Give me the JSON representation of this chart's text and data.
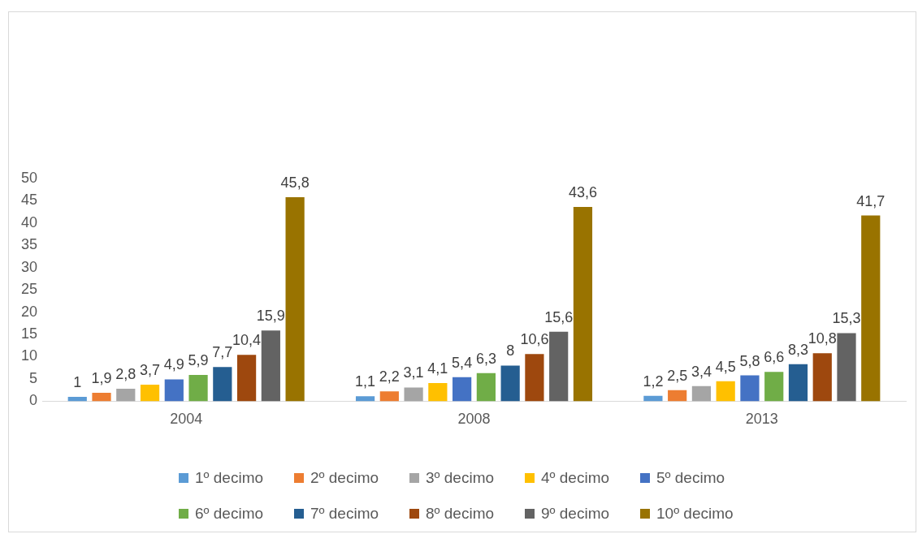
{
  "chart_data": {
    "type": "bar",
    "categories": [
      "2004",
      "2008",
      "2013"
    ],
    "series": [
      {
        "name": "1º decimo",
        "color": "#5b9bd5",
        "values": [
          1,
          1.1,
          1.2
        ],
        "value_labels": [
          "1",
          "1,1",
          "1,2"
        ]
      },
      {
        "name": "2º decimo",
        "color": "#ed7d31",
        "values": [
          1.9,
          2.2,
          2.5
        ],
        "value_labels": [
          "1,9",
          "2,2",
          "2,5"
        ]
      },
      {
        "name": "3º decimo",
        "color": "#a5a5a5",
        "values": [
          2.8,
          3.1,
          3.4
        ],
        "value_labels": [
          "2,8",
          "3,1",
          "3,4"
        ]
      },
      {
        "name": "4º decimo",
        "color": "#ffc000",
        "values": [
          3.7,
          4.1,
          4.5
        ],
        "value_labels": [
          "3,7",
          "4,1",
          "4,5"
        ]
      },
      {
        "name": "5º decimo",
        "color": "#4472c4",
        "values": [
          4.9,
          5.4,
          5.8
        ],
        "value_labels": [
          "4,9",
          "5,4",
          "5,8"
        ]
      },
      {
        "name": "6º decimo",
        "color": "#70ad47",
        "values": [
          5.9,
          6.3,
          6.6
        ],
        "value_labels": [
          "5,9",
          "6,3",
          "6,6"
        ]
      },
      {
        "name": "7º decimo",
        "color": "#255e91",
        "values": [
          7.7,
          8,
          8.3
        ],
        "value_labels": [
          "7,7",
          "8",
          "8,3"
        ]
      },
      {
        "name": "8º decimo",
        "color": "#9e480e",
        "values": [
          10.4,
          10.6,
          10.8
        ],
        "value_labels": [
          "10,4",
          "10,6",
          "10,8"
        ]
      },
      {
        "name": "9º decimo",
        "color": "#636363",
        "values": [
          15.9,
          15.6,
          15.3
        ],
        "value_labels": [
          "15,9",
          "15,6",
          "15,3"
        ]
      },
      {
        "name": "10º decimo",
        "color": "#997300",
        "values": [
          45.8,
          43.6,
          41.7
        ],
        "value_labels": [
          "45,8",
          "43,6",
          "41,7"
        ]
      }
    ],
    "ylim": [
      0,
      50
    ],
    "yticks": [
      0,
      5,
      10,
      15,
      20,
      25,
      30,
      35,
      40,
      45,
      50
    ],
    "grid": false,
    "legend": "bottom"
  }
}
